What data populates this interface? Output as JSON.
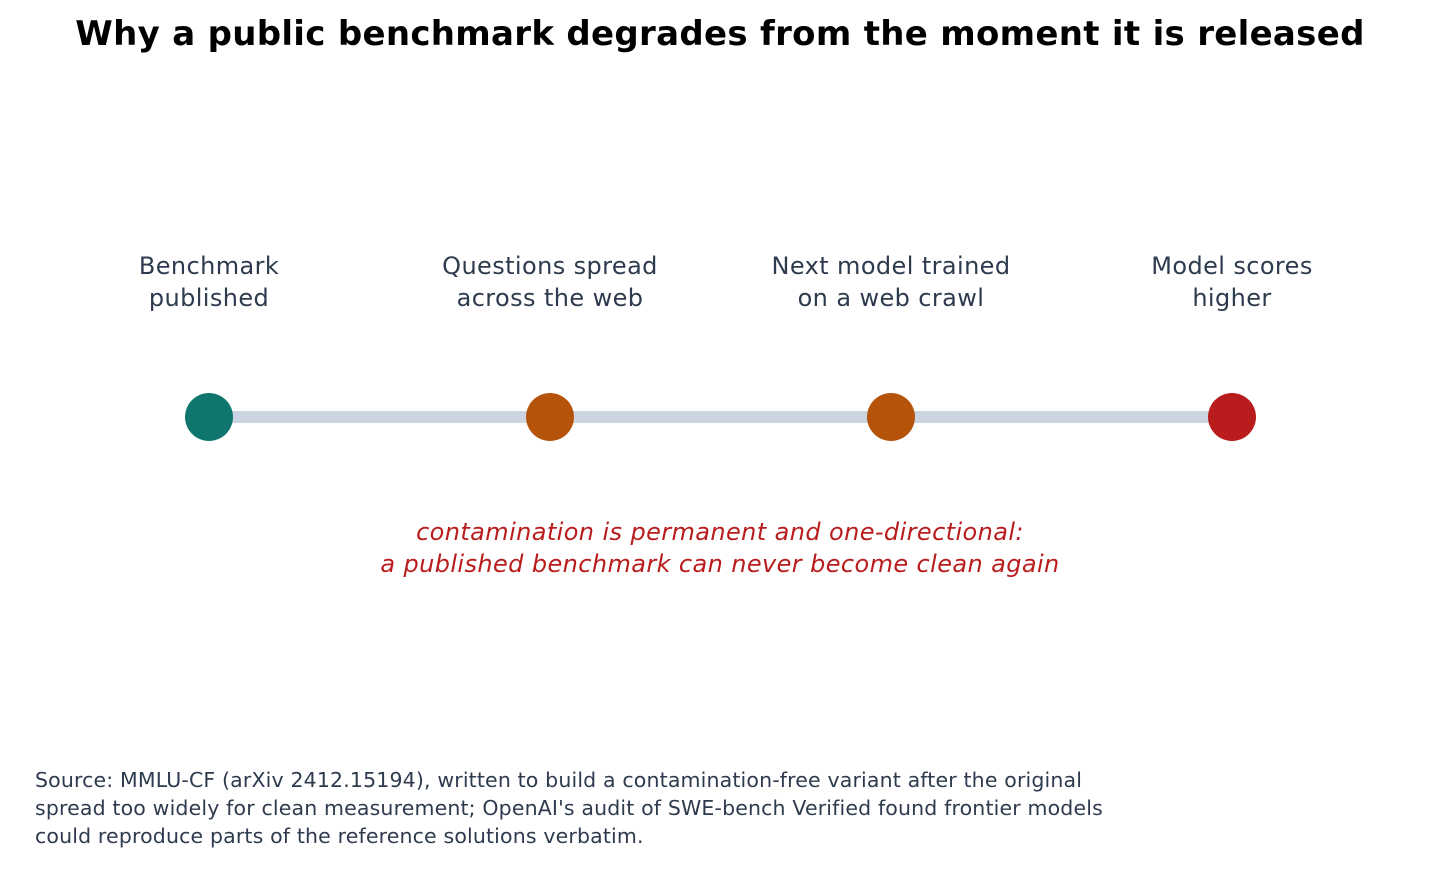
{
  "title": "Why a public benchmark degrades from the moment it is released",
  "stages": [
    {
      "line1": "Benchmark",
      "line2": "published",
      "color": "#0f766e"
    },
    {
      "line1": "Questions spread",
      "line2": "across the web",
      "color": "#b45309"
    },
    {
      "line1": "Next model trained",
      "line2": "on a web crawl",
      "color": "#b45309"
    },
    {
      "line1": "Model scores",
      "line2": "higher",
      "color": "#b91c1c"
    }
  ],
  "connector_color": "#cbd5e1",
  "note": {
    "line1": "contamination is permanent and one-directional:",
    "line2": "a published benchmark can never become clean again",
    "color": "#b91c1c"
  },
  "source": {
    "line1": "Source: MMLU-CF (arXiv 2412.15194), written to build a contamination-free variant after the original",
    "line2": "spread too widely for clean measurement; OpenAI's audit of SWE-bench Verified found frontier models",
    "line3": "could reproduce parts of the reference solutions verbatim."
  }
}
